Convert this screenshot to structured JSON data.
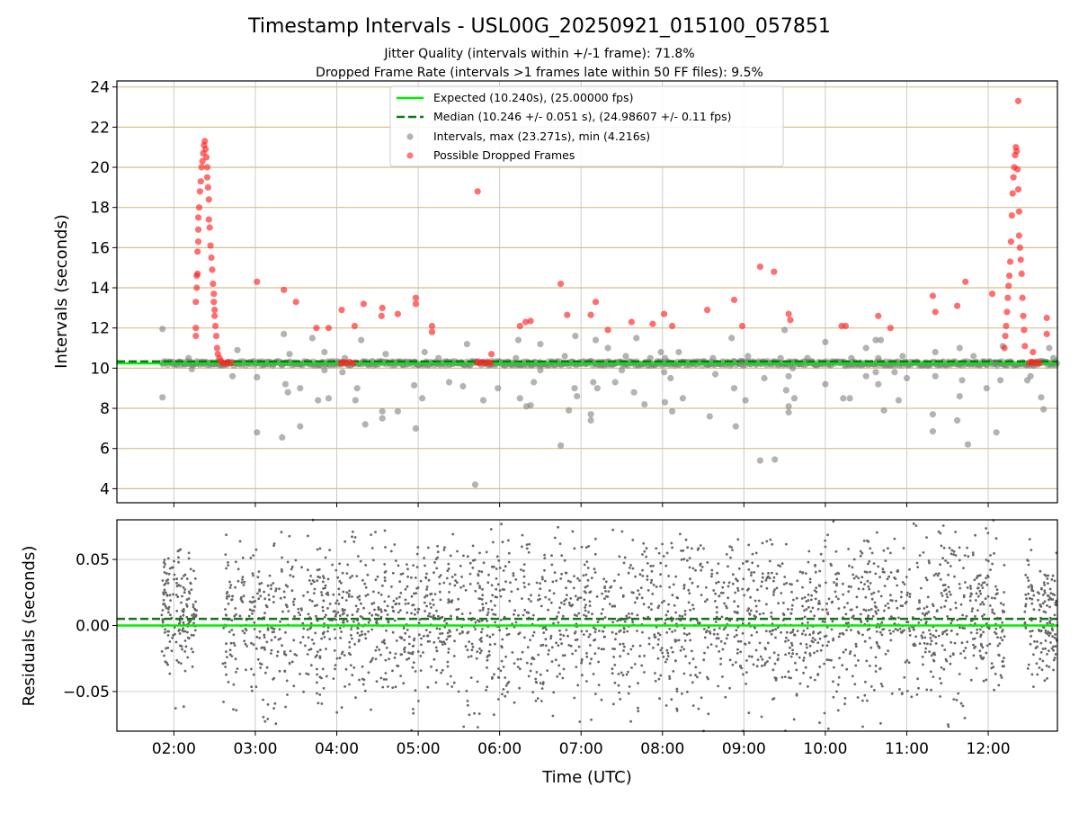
{
  "title": "Timestamp Intervals - USL00G_20250921_015100_057851",
  "subtitle_1": "Jitter Quality (intervals within +/-1 frame): 71.8%",
  "subtitle_2": "Dropped Frame Rate (intervals >1 frames late within 50 FF files): 9.5%",
  "colors": {
    "expected": "#00ee00",
    "median": "#117711",
    "intervals": "#808080",
    "dropped": "#ff2222",
    "hgrid": "#d4c08a",
    "vgrid": "#cccccc"
  },
  "chart_data": [
    {
      "type": "scatter",
      "panel": "top",
      "ylabel": "Intervals (seconds)",
      "xlim_hours": [
        1.3,
        12.85
      ],
      "ylim": [
        3.3,
        24.3
      ],
      "yticks": [
        4,
        6,
        8,
        10,
        12,
        14,
        16,
        18,
        20,
        22,
        24
      ],
      "grid": true,
      "legend_position": "top-center",
      "legend": [
        {
          "label": "Expected (10.240s), (25.00000 fps)",
          "style": "solid-line"
        },
        {
          "label": "Median (10.246 +/- 0.051 s), (24.98607 +/- 0.11 fps)",
          "style": "dashed-line"
        },
        {
          "label": "Intervals, max (23.271s), min (4.216s)",
          "style": "gray-dot"
        },
        {
          "label": "Possible Dropped Frames",
          "style": "red-dot"
        }
      ],
      "expected_value": 10.24,
      "median_value": 10.246,
      "baseline_band": {
        "from": 1.85,
        "to": 12.85,
        "value": 10.24
      },
      "intervals_outliers": [
        [
          1.86,
          11.95
        ],
        [
          1.86,
          8.55
        ],
        [
          2.18,
          10.5
        ],
        [
          2.22,
          9.95
        ],
        [
          2.72,
          9.6
        ],
        [
          2.78,
          10.9
        ],
        [
          3.02,
          9.55
        ],
        [
          3.02,
          6.8
        ],
        [
          3.33,
          6.55
        ],
        [
          3.37,
          9.2
        ],
        [
          3.35,
          11.7
        ],
        [
          3.4,
          8.8
        ],
        [
          3.42,
          10.7
        ],
        [
          3.55,
          7.1
        ],
        [
          3.55,
          9.0
        ],
        [
          3.7,
          11.5
        ],
        [
          3.77,
          8.4
        ],
        [
          3.85,
          9.9
        ],
        [
          3.85,
          10.8
        ],
        [
          3.9,
          8.5
        ],
        [
          4.07,
          9.8
        ],
        [
          4.1,
          10.5
        ],
        [
          4.23,
          8.4
        ],
        [
          4.25,
          9.0
        ],
        [
          4.3,
          11.4
        ],
        [
          4.35,
          7.2
        ],
        [
          4.56,
          7.85
        ],
        [
          4.56,
          7.5
        ],
        [
          4.6,
          10.7
        ],
        [
          4.75,
          7.85
        ],
        [
          4.95,
          9.15
        ],
        [
          4.97,
          7.0
        ],
        [
          5.05,
          8.5
        ],
        [
          5.08,
          10.8
        ],
        [
          5.25,
          10.5
        ],
        [
          5.38,
          9.3
        ],
        [
          5.55,
          9.1
        ],
        [
          5.6,
          11.2
        ],
        [
          5.7,
          4.2
        ],
        [
          5.8,
          8.4
        ],
        [
          5.98,
          9.0
        ],
        [
          6.2,
          10.5
        ],
        [
          6.23,
          11.4
        ],
        [
          6.25,
          8.5
        ],
        [
          6.33,
          8.1
        ],
        [
          6.38,
          8.15
        ],
        [
          6.42,
          9.3
        ],
        [
          6.5,
          9.9
        ],
        [
          6.5,
          11.2
        ],
        [
          6.75,
          6.15
        ],
        [
          6.8,
          10.6
        ],
        [
          6.85,
          7.9
        ],
        [
          6.92,
          9.0
        ],
        [
          6.93,
          11.6
        ],
        [
          6.95,
          8.6
        ],
        [
          7.12,
          7.7
        ],
        [
          7.12,
          7.4
        ],
        [
          7.15,
          9.3
        ],
        [
          7.2,
          9.0
        ],
        [
          7.18,
          11.4
        ],
        [
          7.33,
          11.0
        ],
        [
          7.42,
          9.3
        ],
        [
          7.5,
          9.9
        ],
        [
          7.55,
          10.6
        ],
        [
          7.65,
          8.8
        ],
        [
          7.68,
          11.5
        ],
        [
          7.78,
          8.2
        ],
        [
          7.85,
          10.5
        ],
        [
          7.98,
          10.8
        ],
        [
          8.03,
          8.3
        ],
        [
          8.02,
          9.8
        ],
        [
          8.03,
          10.5
        ],
        [
          8.1,
          9.5
        ],
        [
          8.12,
          7.85
        ],
        [
          8.2,
          10.8
        ],
        [
          8.25,
          8.5
        ],
        [
          8.58,
          7.6
        ],
        [
          8.62,
          10.5
        ],
        [
          8.65,
          9.7
        ],
        [
          8.85,
          11.5
        ],
        [
          8.88,
          9.0
        ],
        [
          8.9,
          7.1
        ],
        [
          8.97,
          10.2
        ],
        [
          9.02,
          8.4
        ],
        [
          9.05,
          10.6
        ],
        [
          9.2,
          5.4
        ],
        [
          9.25,
          9.5
        ],
        [
          9.38,
          5.45
        ],
        [
          9.45,
          10.5
        ],
        [
          9.5,
          11.9
        ],
        [
          9.52,
          8.9
        ],
        [
          9.55,
          8.1
        ],
        [
          9.55,
          9.6
        ],
        [
          9.55,
          7.8
        ],
        [
          9.62,
          8.5
        ],
        [
          9.6,
          10.0
        ],
        [
          9.78,
          10.5
        ],
        [
          10.0,
          11.3
        ],
        [
          10.0,
          9.2
        ],
        [
          10.22,
          8.5
        ],
        [
          10.3,
          8.5
        ],
        [
          10.32,
          10.5
        ],
        [
          10.5,
          11.0
        ],
        [
          10.5,
          9.6
        ],
        [
          10.62,
          11.4
        ],
        [
          10.62,
          9.8
        ],
        [
          10.65,
          9.2
        ],
        [
          10.65,
          10.5
        ],
        [
          10.68,
          11.4
        ],
        [
          10.72,
          7.9
        ],
        [
          10.85,
          9.8
        ],
        [
          10.9,
          8.4
        ],
        [
          10.95,
          10.6
        ],
        [
          11.0,
          9.5
        ],
        [
          11.32,
          7.7
        ],
        [
          11.35,
          10.8
        ],
        [
          11.32,
          6.85
        ],
        [
          11.35,
          9.6
        ],
        [
          11.62,
          7.4
        ],
        [
          11.65,
          8.6
        ],
        [
          11.65,
          11.0
        ],
        [
          11.68,
          9.4
        ],
        [
          11.75,
          6.2
        ],
        [
          11.82,
          10.6
        ],
        [
          11.98,
          9.0
        ],
        [
          12.1,
          6.8
        ],
        [
          12.1,
          10.2
        ],
        [
          12.15,
          9.4
        ],
        [
          12.18,
          11.1
        ],
        [
          12.48,
          9.4
        ],
        [
          12.52,
          9.6
        ],
        [
          12.65,
          8.55
        ],
        [
          12.68,
          7.95
        ],
        [
          12.75,
          11.0
        ],
        [
          12.8,
          10.5
        ]
      ],
      "dropped_frames": [
        [
          2.27,
          11.6
        ],
        [
          2.27,
          12.0
        ],
        [
          2.27,
          13.3
        ],
        [
          2.28,
          14.0
        ],
        [
          2.28,
          14.6
        ],
        [
          2.29,
          14.7
        ],
        [
          2.29,
          15.8
        ],
        [
          2.3,
          16.3
        ],
        [
          2.3,
          16.9
        ],
        [
          2.3,
          17.5
        ],
        [
          2.31,
          18.0
        ],
        [
          2.32,
          18.8
        ],
        [
          2.33,
          19.3
        ],
        [
          2.34,
          20.0
        ],
        [
          2.35,
          20.3
        ],
        [
          2.36,
          20.7
        ],
        [
          2.37,
          21.1
        ],
        [
          2.38,
          21.3
        ],
        [
          2.39,
          20.9
        ],
        [
          2.4,
          20.5
        ],
        [
          2.41,
          20.0
        ],
        [
          2.41,
          19.5
        ],
        [
          2.42,
          19.0
        ],
        [
          2.43,
          18.4
        ],
        [
          2.43,
          17.4
        ],
        [
          2.44,
          17.0
        ],
        [
          2.45,
          16.1
        ],
        [
          2.46,
          15.5
        ],
        [
          2.47,
          14.9
        ],
        [
          2.48,
          14.2
        ],
        [
          2.49,
          13.7
        ],
        [
          2.49,
          13.3
        ],
        [
          2.5,
          12.9
        ],
        [
          2.5,
          12.6
        ],
        [
          2.51,
          12.1
        ],
        [
          2.52,
          11.6
        ],
        [
          2.53,
          11.0
        ],
        [
          2.54,
          10.7
        ],
        [
          2.56,
          10.5
        ],
        [
          2.58,
          10.35
        ],
        [
          3.02,
          14.3
        ],
        [
          3.35,
          13.9
        ],
        [
          3.5,
          13.3
        ],
        [
          3.75,
          12.0
        ],
        [
          3.9,
          12.0
        ],
        [
          4.06,
          12.9
        ],
        [
          4.22,
          12.1
        ],
        [
          4.33,
          13.2
        ],
        [
          4.55,
          12.6
        ],
        [
          4.56,
          13.0
        ],
        [
          4.75,
          12.7
        ],
        [
          4.97,
          13.5
        ],
        [
          4.97,
          13.2
        ],
        [
          5.17,
          12.1
        ],
        [
          5.17,
          11.8
        ],
        [
          5.73,
          18.8
        ],
        [
          5.9,
          10.7
        ],
        [
          6.25,
          12.1
        ],
        [
          6.32,
          12.3
        ],
        [
          6.38,
          12.35
        ],
        [
          6.75,
          14.2
        ],
        [
          6.83,
          12.65
        ],
        [
          7.12,
          12.65
        ],
        [
          7.18,
          13.3
        ],
        [
          7.33,
          11.9
        ],
        [
          7.62,
          12.3
        ],
        [
          7.88,
          12.2
        ],
        [
          8.02,
          12.7
        ],
        [
          8.12,
          12.1
        ],
        [
          8.55,
          12.9
        ],
        [
          8.88,
          13.4
        ],
        [
          8.98,
          12.1
        ],
        [
          9.2,
          15.05
        ],
        [
          9.37,
          14.8
        ],
        [
          9.55,
          12.7
        ],
        [
          9.57,
          12.4
        ],
        [
          10.2,
          12.1
        ],
        [
          10.25,
          12.1
        ],
        [
          10.65,
          12.6
        ],
        [
          10.8,
          12.0
        ],
        [
          11.32,
          13.6
        ],
        [
          11.35,
          12.8
        ],
        [
          11.62,
          13.1
        ],
        [
          11.72,
          14.3
        ],
        [
          12.05,
          13.7
        ],
        [
          12.2,
          11.0
        ],
        [
          12.21,
          11.6
        ],
        [
          12.22,
          12.1
        ],
        [
          12.23,
          12.8
        ],
        [
          12.24,
          13.5
        ],
        [
          12.25,
          14.1
        ],
        [
          12.26,
          14.6
        ],
        [
          12.27,
          15.3
        ],
        [
          12.28,
          16.3
        ],
        [
          12.29,
          17.6
        ],
        [
          12.3,
          18.7
        ],
        [
          12.31,
          19.5
        ],
        [
          12.32,
          20.0
        ],
        [
          12.33,
          20.6
        ],
        [
          12.34,
          21.0
        ],
        [
          12.35,
          20.8
        ],
        [
          12.36,
          19.9
        ],
        [
          12.37,
          18.9
        ],
        [
          12.38,
          17.8
        ],
        [
          12.38,
          16.6
        ],
        [
          12.39,
          16.0
        ],
        [
          12.4,
          15.4
        ],
        [
          12.41,
          14.7
        ],
        [
          12.42,
          13.5
        ],
        [
          12.43,
          12.6
        ],
        [
          12.44,
          11.9
        ],
        [
          12.45,
          11.1
        ],
        [
          12.37,
          23.3
        ],
        [
          12.55,
          10.8
        ],
        [
          12.72,
          11.7
        ],
        [
          12.72,
          12.5
        ],
        [
          2.6,
          10.25
        ],
        [
          2.63,
          10.25
        ],
        [
          2.66,
          10.3
        ],
        [
          2.7,
          10.25
        ],
        [
          4.05,
          10.25
        ],
        [
          4.08,
          10.3
        ],
        [
          4.12,
          10.25
        ],
        [
          4.16,
          10.3
        ],
        [
          4.2,
          10.25
        ],
        [
          5.72,
          10.3
        ],
        [
          5.75,
          10.25
        ],
        [
          5.79,
          10.3
        ],
        [
          5.83,
          10.25
        ],
        [
          5.86,
          10.3
        ],
        [
          5.89,
          10.25
        ],
        [
          12.5,
          10.25
        ],
        [
          12.53,
          10.3
        ],
        [
          12.56,
          10.25
        ],
        [
          12.6,
          10.3
        ],
        [
          12.63,
          10.25
        ]
      ]
    },
    {
      "type": "scatter",
      "panel": "bottom",
      "ylabel": "Residuals (seconds)",
      "xlabel": "Time (UTC)",
      "xlim_hours": [
        1.3,
        12.85
      ],
      "ylim": [
        -0.08,
        0.08
      ],
      "yticks": [
        -0.05,
        0.0,
        0.05
      ],
      "ytick_labels": [
        "−0.05",
        "0.00",
        "0.05"
      ],
      "xticks_hours": [
        2,
        3,
        4,
        5,
        6,
        7,
        8,
        9,
        10,
        11,
        12
      ],
      "xtick_labels": [
        "02:00",
        "03:00",
        "04:00",
        "05:00",
        "06:00",
        "07:00",
        "08:00",
        "09:00",
        "10:00",
        "11:00",
        "12:00"
      ],
      "grid": true,
      "expected_value": 0.0,
      "median_value": 0.005,
      "residual_segments": [
        {
          "from": 1.85,
          "to": 2.28,
          "center": 0.012,
          "spread": 0.022,
          "count": 170
        },
        {
          "from": 2.6,
          "to": 12.2,
          "center": 0.005,
          "spread": 0.032,
          "count": 2500
        },
        {
          "from": 12.45,
          "to": 12.85,
          "center": 0.008,
          "spread": 0.024,
          "count": 150
        }
      ]
    }
  ]
}
